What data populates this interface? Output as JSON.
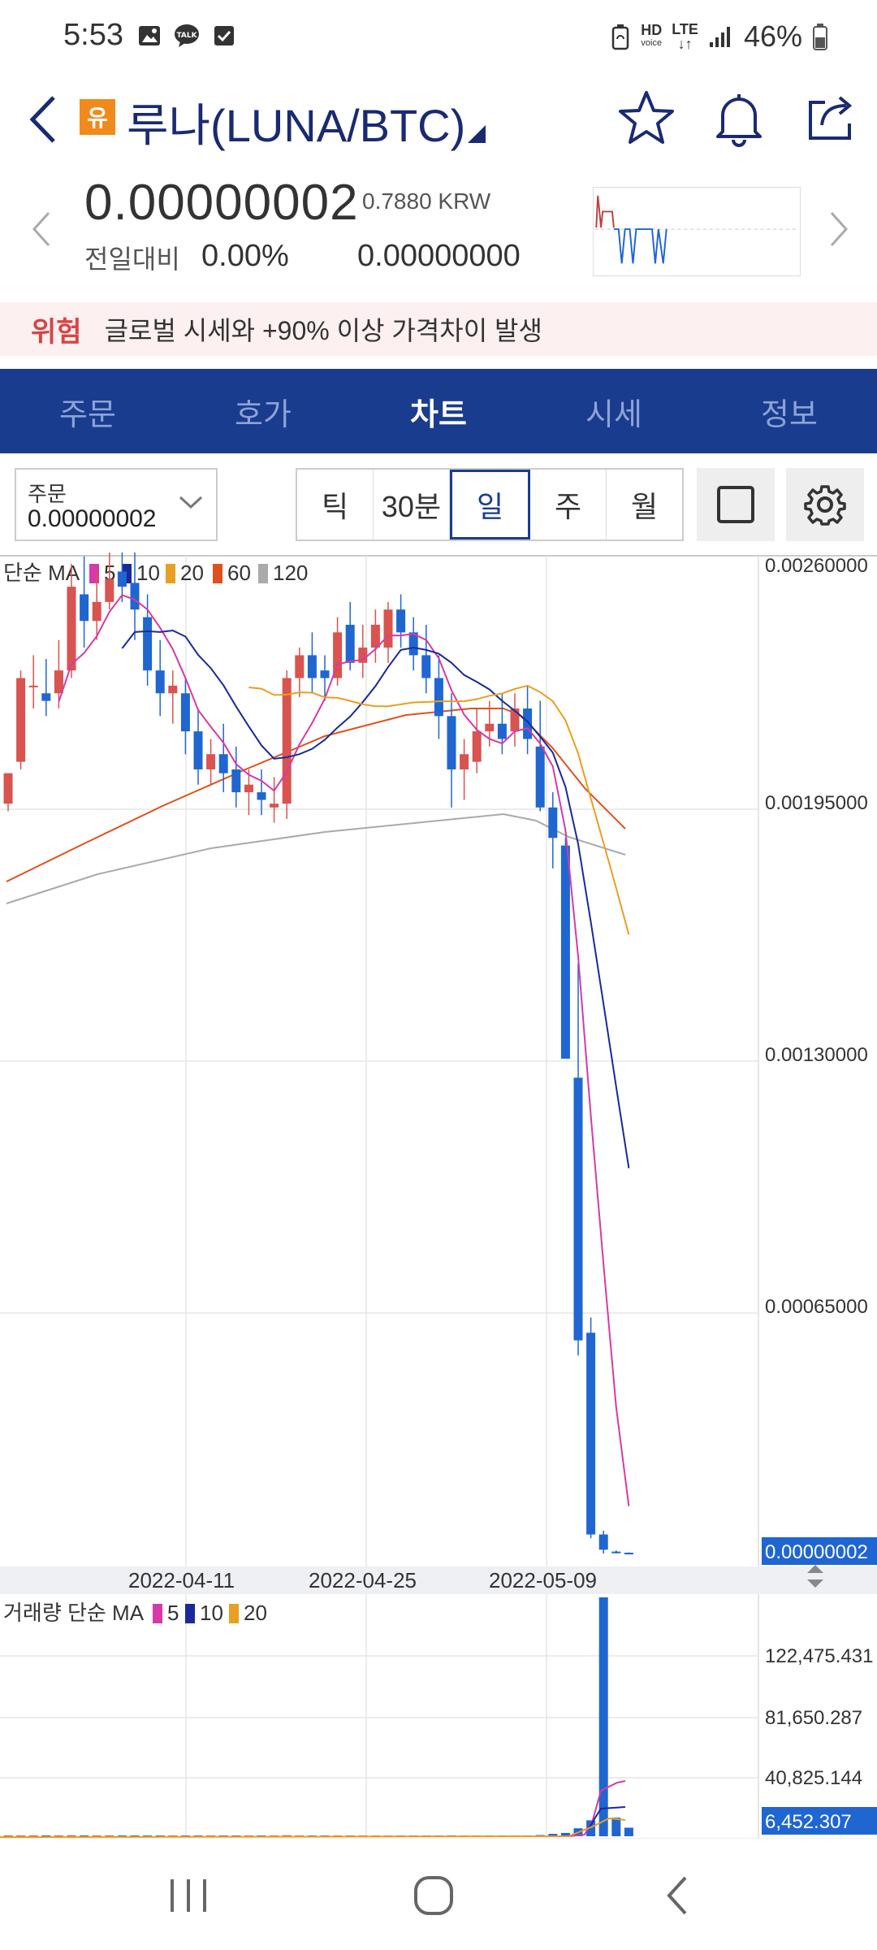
{
  "status_bar": {
    "time": "5:53",
    "notification_icons": [
      "gallery-icon",
      "kakaotalk-icon",
      "checkbox-icon"
    ],
    "talk_label": "TALK",
    "hd_label": "HD",
    "voice_label": "voice",
    "lte_label": "LTE",
    "battery": "46%"
  },
  "header": {
    "warning_badge": "유",
    "title": "루나(LUNA/BTC)"
  },
  "price": {
    "current": "0.00000002",
    "krw": "0.7880 KRW",
    "change_label": "전일대비",
    "change_rate": "0.00%",
    "change_amount": "0.00000000"
  },
  "warning": {
    "tag": "위험",
    "message": "글로벌 시세와 +90% 이상 가격차이 발생"
  },
  "tabs": [
    {
      "label": "주문",
      "active": false
    },
    {
      "label": "호가",
      "active": false
    },
    {
      "label": "차트",
      "active": true
    },
    {
      "label": "시세",
      "active": false
    },
    {
      "label": "정보",
      "active": false
    }
  ],
  "toolbar": {
    "order_label": "주문",
    "order_value": "0.00000002",
    "intervals": [
      {
        "label": "틱",
        "active": false
      },
      {
        "label": "30분",
        "active": false
      },
      {
        "label": "일",
        "active": true
      },
      {
        "label": "주",
        "active": false
      },
      {
        "label": "월",
        "active": false
      }
    ]
  },
  "colors": {
    "up": "#d9534f",
    "down": "#1f66d1",
    "ma5": "#d63aa8",
    "ma10": "#1a2a9c",
    "ma20": "#e8a020",
    "ma60": "#e0501c",
    "ma120": "#aaaaaa",
    "tab_bg": "#1a3c8f"
  },
  "chart_data": {
    "type": "candlestick",
    "price_legend": {
      "prefix": "단순 MA",
      "periods": [
        "5",
        "10",
        "20",
        "60",
        "120"
      ]
    },
    "volume_legend": {
      "prefix": "거래량 단순 MA",
      "periods": [
        "5",
        "10",
        "20"
      ]
    },
    "y_ticks": [
      "0.00260000",
      "0.00195000",
      "0.00130000",
      "0.00065000"
    ],
    "current_price_label": "0.00000002",
    "x_ticks": [
      "2022-04-11",
      "2022-04-25",
      "2022-05-09"
    ],
    "volume_ticks": [
      "122,475.431",
      "81,650.287",
      "40,825.144"
    ],
    "current_volume_label": "6,452.307",
    "ylim": [
      0.0,
      0.0026
    ],
    "candles": [
      {
        "o": 0.00197,
        "h": 0.00205,
        "l": 0.00195,
        "c": 0.00205
      },
      {
        "o": 0.00208,
        "h": 0.00232,
        "l": 0.00206,
        "c": 0.0023
      },
      {
        "o": 0.00228,
        "h": 0.00236,
        "l": 0.00222,
        "c": 0.00228
      },
      {
        "o": 0.00226,
        "h": 0.00235,
        "l": 0.0022,
        "c": 0.00224
      },
      {
        "o": 0.00226,
        "h": 0.0024,
        "l": 0.00222,
        "c": 0.00232
      },
      {
        "o": 0.00232,
        "h": 0.0026,
        "l": 0.0023,
        "c": 0.00254
      },
      {
        "o": 0.00252,
        "h": 0.00262,
        "l": 0.00238,
        "c": 0.00245
      },
      {
        "o": 0.00245,
        "h": 0.00258,
        "l": 0.0024,
        "c": 0.0025
      },
      {
        "o": 0.0025,
        "h": 0.00265,
        "l": 0.00248,
        "c": 0.00256
      },
      {
        "o": 0.00258,
        "h": 0.00264,
        "l": 0.0025,
        "c": 0.00254
      },
      {
        "o": 0.00255,
        "h": 0.00263,
        "l": 0.0024,
        "c": 0.00248
      },
      {
        "o": 0.00246,
        "h": 0.00252,
        "l": 0.00228,
        "c": 0.00232
      },
      {
        "o": 0.00232,
        "h": 0.0024,
        "l": 0.0022,
        "c": 0.00226
      },
      {
        "o": 0.00226,
        "h": 0.00232,
        "l": 0.00218,
        "c": 0.00228
      },
      {
        "o": 0.00226,
        "h": 0.0023,
        "l": 0.0021,
        "c": 0.00216
      },
      {
        "o": 0.00216,
        "h": 0.00222,
        "l": 0.00202,
        "c": 0.00206
      },
      {
        "o": 0.00206,
        "h": 0.00214,
        "l": 0.00202,
        "c": 0.0021
      },
      {
        "o": 0.0021,
        "h": 0.00218,
        "l": 0.002,
        "c": 0.00205
      },
      {
        "o": 0.00206,
        "h": 0.00212,
        "l": 0.00196,
        "c": 0.002
      },
      {
        "o": 0.002,
        "h": 0.00206,
        "l": 0.00194,
        "c": 0.00202
      },
      {
        "o": 0.002,
        "h": 0.00206,
        "l": 0.00194,
        "c": 0.00198
      },
      {
        "o": 0.00196,
        "h": 0.00204,
        "l": 0.00192,
        "c": 0.00197
      },
      {
        "o": 0.00197,
        "h": 0.00232,
        "l": 0.00193,
        "c": 0.0023
      },
      {
        "o": 0.0023,
        "h": 0.00238,
        "l": 0.00225,
        "c": 0.00236
      },
      {
        "o": 0.00236,
        "h": 0.00242,
        "l": 0.00226,
        "c": 0.0023
      },
      {
        "o": 0.00232,
        "h": 0.00236,
        "l": 0.00224,
        "c": 0.0023
      },
      {
        "o": 0.0023,
        "h": 0.00246,
        "l": 0.00228,
        "c": 0.00242
      },
      {
        "o": 0.00244,
        "h": 0.0025,
        "l": 0.00232,
        "c": 0.00234
      },
      {
        "o": 0.00234,
        "h": 0.00244,
        "l": 0.0023,
        "c": 0.00238
      },
      {
        "o": 0.00238,
        "h": 0.00248,
        "l": 0.00234,
        "c": 0.00244
      },
      {
        "o": 0.00238,
        "h": 0.0025,
        "l": 0.00234,
        "c": 0.00248
      },
      {
        "o": 0.00248,
        "h": 0.00252,
        "l": 0.00238,
        "c": 0.00242
      },
      {
        "o": 0.00242,
        "h": 0.00246,
        "l": 0.00232,
        "c": 0.00236
      },
      {
        "o": 0.00236,
        "h": 0.00244,
        "l": 0.00226,
        "c": 0.0023
      },
      {
        "o": 0.0023,
        "h": 0.00236,
        "l": 0.00214,
        "c": 0.0022
      },
      {
        "o": 0.0022,
        "h": 0.00226,
        "l": 0.00196,
        "c": 0.00206
      },
      {
        "o": 0.00206,
        "h": 0.00214,
        "l": 0.00198,
        "c": 0.0021
      },
      {
        "o": 0.00208,
        "h": 0.00222,
        "l": 0.00205,
        "c": 0.00216
      },
      {
        "o": 0.00216,
        "h": 0.00224,
        "l": 0.00212,
        "c": 0.00218
      },
      {
        "o": 0.00218,
        "h": 0.00226,
        "l": 0.0021,
        "c": 0.00214
      },
      {
        "o": 0.00216,
        "h": 0.00226,
        "l": 0.00212,
        "c": 0.00222
      },
      {
        "o": 0.00222,
        "h": 0.00228,
        "l": 0.0021,
        "c": 0.00214
      },
      {
        "o": 0.00212,
        "h": 0.00224,
        "l": 0.00195,
        "c": 0.00196
      },
      {
        "o": 0.00196,
        "h": 0.002,
        "l": 0.0018,
        "c": 0.00188
      },
      {
        "o": 0.00186,
        "h": 0.00188,
        "l": 0.0013,
        "c": 0.0013
      },
      {
        "o": 0.00125,
        "h": 0.00155,
        "l": 0.00052,
        "c": 0.00056
      },
      {
        "o": 0.00058,
        "h": 0.00062,
        "l": 4e-05,
        "c": 5e-05
      },
      {
        "o": 5e-05,
        "h": 6e-05,
        "l": 0.0,
        "c": 1e-05
      },
      {
        "o": 5e-06,
        "h": 8e-06,
        "l": 0.0,
        "c": 2e-06
      },
      {
        "o": 2e-06,
        "h": 3e-06,
        "l": 0.0,
        "c": 2e-08
      }
    ],
    "volumes": [
      400,
      500,
      450,
      420,
      480,
      700,
      600,
      550,
      620,
      640,
      500,
      450,
      420,
      400,
      380,
      420,
      400,
      380,
      360,
      350,
      340,
      330,
      800,
      600,
      550,
      500,
      620,
      520,
      500,
      540,
      600,
      480,
      460,
      440,
      500,
      700,
      480,
      500,
      460,
      440,
      520,
      560,
      900,
      1800,
      2500,
      6000,
      12000,
      180000,
      14000,
      6452
    ]
  }
}
